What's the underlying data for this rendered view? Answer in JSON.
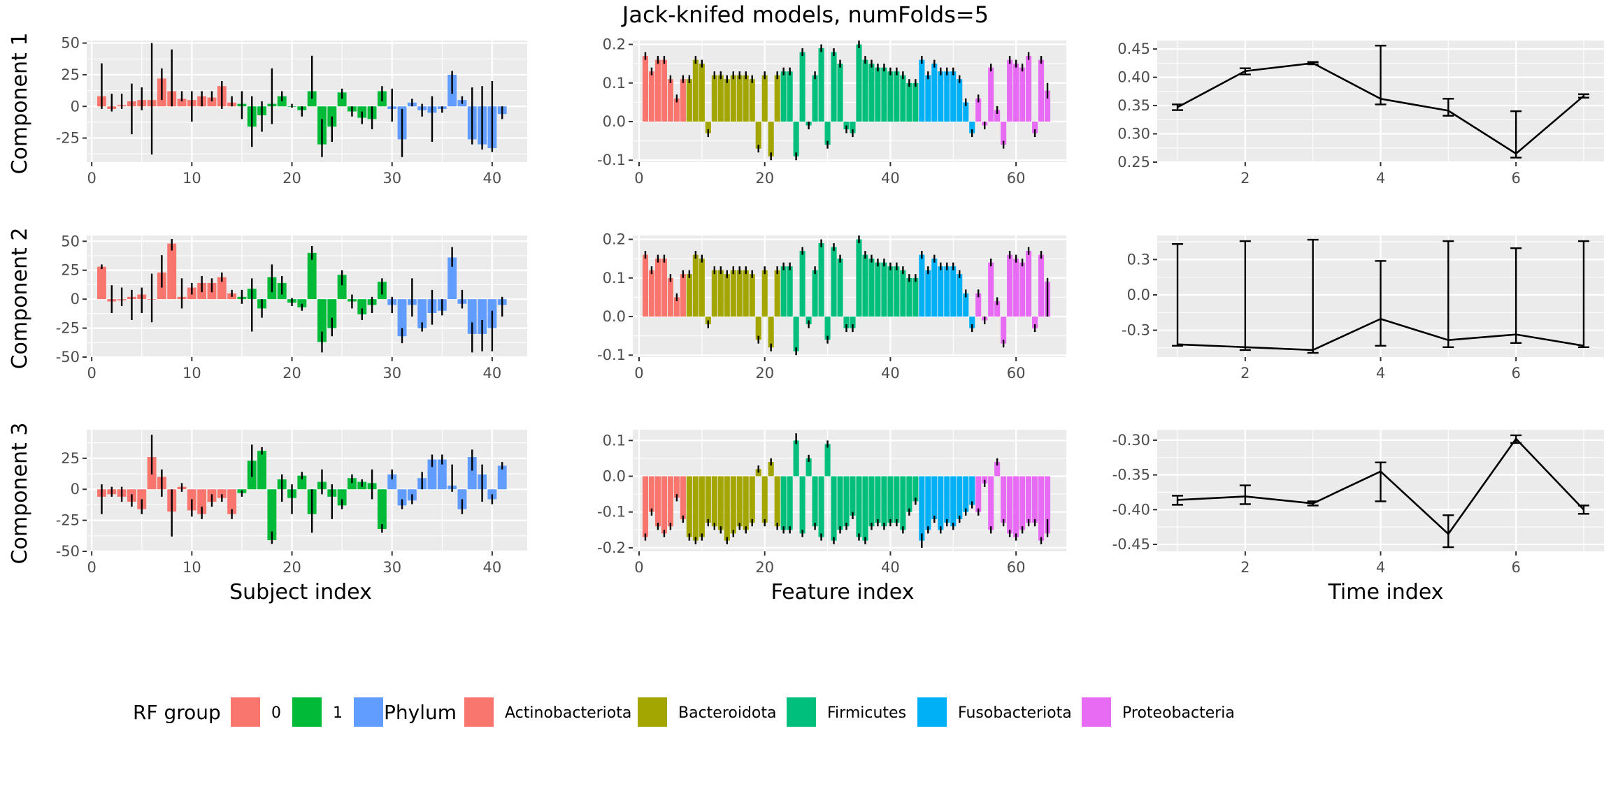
{
  "title": "Jack-knifed models, numFolds=5",
  "row_labels": [
    "Component 1",
    "Component 2",
    "Component 3"
  ],
  "x_labels": [
    "Subject index",
    "Feature index",
    "Time index"
  ],
  "colors": {
    "group_0": "#F8766D",
    "group_1": "#00BA38",
    "group_2": "#619CFF",
    "Actinobacteriota": "#F8766D",
    "Bacteroidota": "#A3A500",
    "Firmicutes": "#00BF7D",
    "Fusobacteriota": "#00B0F6",
    "Proteobacteria": "#E76BF3",
    "panel_bg": "#EBEBEB",
    "grid": "#FFFFFF"
  },
  "legend": {
    "rf_title": "RF group",
    "rf_labels": [
      "0",
      "1",
      ""
    ],
    "phylum_title": "Phylum",
    "phylum_labels": [
      "Actinobacteriota",
      "Bacteroidota",
      "Firmicutes",
      "Fusobacteriota",
      "Proteobacteria"
    ]
  },
  "chart_data": [
    {
      "id": "subject_c1",
      "type": "bar",
      "xlim": [
        -0.5,
        43.5
      ],
      "ylim": [
        -44,
        52
      ],
      "xticks": [
        0,
        10,
        20,
        30,
        40
      ],
      "yticks": [
        -25,
        0,
        25,
        50
      ],
      "group_sizes": [
        14,
        15,
        12
      ],
      "group_keys": [
        "group_0",
        "group_1",
        "group_2"
      ],
      "values": [
        8,
        -2,
        1,
        4,
        5,
        5,
        22,
        12,
        6,
        5,
        8,
        7,
        16,
        3,
        2,
        -16,
        -7,
        2,
        8,
        0,
        -3,
        12,
        -30,
        -16,
        11,
        -4,
        -9,
        -10,
        12,
        -2,
        -26,
        3,
        -3,
        -5,
        -2,
        25,
        5,
        -26,
        -30,
        -33,
        -6
      ],
      "lows": [
        -2,
        -4,
        -2,
        -22,
        -3,
        -38,
        5,
        0,
        4,
        -12,
        0,
        4,
        -2,
        0,
        -10,
        -32,
        -20,
        -14,
        4,
        -1,
        -8,
        6,
        -40,
        -28,
        6,
        -8,
        -14,
        -18,
        4,
        -12,
        -40,
        0,
        -8,
        -28,
        -5,
        10,
        2,
        -30,
        -34,
        -36,
        -10
      ],
      "highs": [
        34,
        10,
        10,
        18,
        15,
        50,
        30,
        45,
        12,
        12,
        12,
        12,
        20,
        8,
        12,
        8,
        4,
        30,
        12,
        2,
        0,
        40,
        -10,
        -8,
        14,
        0,
        -4,
        0,
        16,
        14,
        -2,
        6,
        2,
        8,
        0,
        28,
        8,
        15,
        16,
        20,
        0
      ]
    },
    {
      "id": "feature_c1",
      "type": "bar",
      "xlim": [
        -1,
        68
      ],
      "ylim": [
        -0.105,
        0.21
      ],
      "xticks": [
        0,
        20,
        40,
        60
      ],
      "yticks": [
        -0.1,
        0.0,
        0.1,
        0.2
      ],
      "group_sizes": [
        7,
        15,
        22,
        9,
        12
      ],
      "group_keys": [
        "Actinobacteriota",
        "Bacteroidota",
        "Firmicutes",
        "Fusobacteriota",
        "Proteobacteria"
      ],
      "values": [
        0.17,
        0.13,
        0.16,
        0.16,
        0.11,
        0.06,
        0.11,
        0.11,
        0.16,
        0.15,
        -0.03,
        0.12,
        0.12,
        0.11,
        0.12,
        0.12,
        0.12,
        0.11,
        -0.07,
        0.12,
        -0.09,
        0.12,
        0.13,
        0.13,
        -0.09,
        0.18,
        -0.01,
        0.12,
        0.19,
        -0.06,
        0.18,
        0.15,
        -0.02,
        -0.03,
        0.2,
        0.16,
        0.15,
        0.14,
        0.14,
        0.13,
        0.13,
        0.12,
        0.1,
        0.1,
        0.16,
        0.12,
        0.15,
        0.13,
        0.13,
        0.13,
        0.11,
        0.05,
        -0.03,
        0.06,
        -0.01,
        0.14,
        0.03,
        -0.06,
        0.16,
        0.15,
        0.14,
        0.17,
        -0.03,
        0.16,
        0.08
      ],
      "lows": [
        0.16,
        0.12,
        0.15,
        0.15,
        0.1,
        0.05,
        0.1,
        0.1,
        0.15,
        0.14,
        -0.04,
        0.11,
        0.11,
        0.1,
        0.11,
        0.11,
        0.11,
        0.1,
        -0.08,
        0.11,
        -0.1,
        0.11,
        0.12,
        0.12,
        -0.1,
        0.17,
        -0.02,
        0.11,
        0.18,
        -0.07,
        0.17,
        0.14,
        -0.03,
        -0.04,
        0.19,
        0.15,
        0.14,
        0.13,
        0.13,
        0.12,
        0.12,
        0.11,
        0.09,
        0.09,
        0.15,
        0.11,
        0.14,
        0.12,
        0.12,
        0.12,
        0.1,
        0.04,
        -0.04,
        0.05,
        -0.02,
        0.13,
        0.02,
        -0.07,
        0.15,
        0.14,
        0.13,
        0.16,
        -0.04,
        0.15,
        0.06
      ],
      "highs": [
        0.18,
        0.14,
        0.17,
        0.17,
        0.12,
        0.07,
        0.12,
        0.12,
        0.17,
        0.16,
        -0.02,
        0.13,
        0.13,
        0.12,
        0.13,
        0.13,
        0.13,
        0.12,
        -0.06,
        0.13,
        -0.08,
        0.13,
        0.14,
        0.14,
        -0.08,
        0.19,
        0.0,
        0.13,
        0.2,
        -0.05,
        0.19,
        0.16,
        -0.01,
        -0.02,
        0.21,
        0.17,
        0.16,
        0.15,
        0.15,
        0.14,
        0.14,
        0.13,
        0.11,
        0.11,
        0.17,
        0.13,
        0.16,
        0.14,
        0.14,
        0.14,
        0.12,
        0.06,
        -0.02,
        0.07,
        0.0,
        0.15,
        0.04,
        -0.05,
        0.17,
        0.16,
        0.15,
        0.18,
        -0.02,
        0.17,
        0.1
      ]
    },
    {
      "id": "time_c1",
      "type": "line",
      "xlim": [
        0.7,
        7.3
      ],
      "ylim": [
        0.25,
        0.465
      ],
      "xticks": [
        2,
        4,
        6
      ],
      "yticks": [
        0.25,
        0.3,
        0.35,
        0.4,
        0.45
      ],
      "x": [
        1,
        2,
        3,
        4,
        5,
        6,
        7
      ],
      "values": [
        0.347,
        0.411,
        0.425,
        0.362,
        0.341,
        0.265,
        0.367
      ],
      "lows": [
        0.342,
        0.405,
        0.423,
        0.352,
        0.332,
        0.258,
        0.364
      ],
      "highs": [
        0.352,
        0.416,
        0.427,
        0.456,
        0.362,
        0.34,
        0.37
      ]
    },
    {
      "id": "subject_c2",
      "type": "bar",
      "xlim": [
        -0.5,
        43.5
      ],
      "ylim": [
        -50,
        55
      ],
      "xticks": [
        0,
        10,
        20,
        30,
        40
      ],
      "yticks": [
        -50,
        -25,
        0,
        25,
        50
      ],
      "group_sizes": [
        14,
        15,
        12
      ],
      "group_keys": [
        "group_0",
        "group_1",
        "group_2"
      ],
      "values": [
        28,
        -2,
        -1,
        2,
        4,
        0,
        23,
        48,
        2,
        10,
        14,
        14,
        19,
        5,
        2,
        9,
        -8,
        19,
        14,
        -3,
        -7,
        40,
        -37,
        -25,
        21,
        -2,
        -13,
        -5,
        15,
        -5,
        -32,
        -5,
        -25,
        -12,
        -10,
        36,
        -4,
        -30,
        -30,
        -25,
        -5
      ],
      "lows": [
        26,
        -12,
        -6,
        -18,
        -12,
        -20,
        10,
        42,
        -8,
        4,
        6,
        6,
        15,
        2,
        -4,
        -28,
        -16,
        6,
        4,
        -6,
        -10,
        34,
        -46,
        -32,
        12,
        -8,
        -18,
        -12,
        4,
        -12,
        -38,
        -15,
        -28,
        -22,
        -14,
        28,
        -8,
        -46,
        -45,
        -45,
        -15
      ],
      "highs": [
        30,
        12,
        10,
        8,
        10,
        22,
        38,
        52,
        18,
        14,
        20,
        18,
        23,
        8,
        8,
        18,
        0,
        30,
        20,
        1,
        -4,
        46,
        -28,
        -16,
        25,
        4,
        -8,
        2,
        18,
        2,
        -25,
        18,
        -20,
        8,
        0,
        45,
        8,
        -20,
        -18,
        -10,
        2
      ]
    },
    {
      "id": "feature_c2",
      "type": "bar",
      "xlim": [
        -1,
        68
      ],
      "ylim": [
        -0.105,
        0.21
      ],
      "xticks": [
        0,
        20,
        40,
        60
      ],
      "yticks": [
        -0.1,
        0.0,
        0.1,
        0.2
      ],
      "group_sizes": [
        7,
        15,
        22,
        9,
        12
      ],
      "group_keys": [
        "Actinobacteriota",
        "Bacteroidota",
        "Firmicutes",
        "Fusobacteriota",
        "Proteobacteria"
      ],
      "values": [
        0.16,
        0.12,
        0.15,
        0.15,
        0.1,
        0.05,
        0.11,
        0.11,
        0.16,
        0.15,
        -0.02,
        0.12,
        0.12,
        0.11,
        0.12,
        0.12,
        0.12,
        0.11,
        -0.06,
        0.12,
        -0.08,
        0.12,
        0.13,
        0.13,
        -0.09,
        0.17,
        -0.02,
        0.12,
        0.19,
        -0.06,
        0.18,
        0.15,
        -0.03,
        -0.03,
        0.2,
        0.16,
        0.15,
        0.14,
        0.14,
        0.13,
        0.13,
        0.12,
        0.1,
        0.1,
        0.16,
        0.12,
        0.15,
        0.13,
        0.13,
        0.13,
        0.11,
        0.06,
        -0.03,
        0.06,
        -0.01,
        0.14,
        0.04,
        -0.07,
        0.16,
        0.15,
        0.14,
        0.17,
        -0.03,
        0.16,
        0.09
      ],
      "lows": [
        0.15,
        0.11,
        0.14,
        0.14,
        0.09,
        0.04,
        0.1,
        0.1,
        0.15,
        0.14,
        -0.03,
        0.11,
        0.11,
        0.1,
        0.11,
        0.11,
        0.11,
        0.1,
        -0.07,
        0.11,
        -0.09,
        0.11,
        0.12,
        0.12,
        -0.1,
        0.16,
        -0.03,
        0.11,
        0.18,
        -0.07,
        0.17,
        0.14,
        -0.04,
        -0.04,
        0.19,
        0.15,
        0.14,
        0.13,
        0.13,
        0.12,
        0.12,
        0.11,
        0.09,
        0.09,
        0.15,
        0.11,
        0.14,
        0.12,
        0.12,
        0.12,
        0.1,
        0.05,
        -0.04,
        0.05,
        -0.02,
        0.13,
        0.03,
        -0.08,
        0.15,
        0.14,
        0.13,
        0.16,
        -0.04,
        0.15,
        0.0
      ],
      "highs": [
        0.17,
        0.13,
        0.16,
        0.16,
        0.11,
        0.06,
        0.12,
        0.12,
        0.17,
        0.16,
        -0.01,
        0.13,
        0.13,
        0.12,
        0.13,
        0.13,
        0.13,
        0.12,
        -0.05,
        0.13,
        -0.07,
        0.13,
        0.14,
        0.14,
        -0.08,
        0.18,
        -0.01,
        0.13,
        0.2,
        -0.05,
        0.19,
        0.16,
        -0.02,
        -0.02,
        0.21,
        0.17,
        0.16,
        0.15,
        0.15,
        0.14,
        0.14,
        0.13,
        0.11,
        0.11,
        0.17,
        0.13,
        0.16,
        0.14,
        0.14,
        0.14,
        0.12,
        0.07,
        -0.02,
        0.07,
        0.0,
        0.15,
        0.05,
        -0.06,
        0.17,
        0.16,
        0.15,
        0.18,
        -0.02,
        0.17,
        0.1
      ]
    },
    {
      "id": "time_c2",
      "type": "line",
      "xlim": [
        0.7,
        7.3
      ],
      "ylim": [
        -0.44,
        0.42
      ],
      "xticks": [
        2,
        4,
        6
      ],
      "yticks": [
        -0.25,
        0.0,
        0.25
      ],
      "x": [
        1,
        2,
        3,
        4,
        5,
        6,
        7
      ],
      "values": [
        -0.35,
        -0.37,
        -0.39,
        -0.17,
        -0.32,
        -0.28,
        -0.36
      ],
      "lows": [
        -0.36,
        -0.39,
        -0.41,
        -0.36,
        -0.37,
        -0.34,
        -0.37
      ],
      "highs": [
        0.36,
        0.38,
        0.39,
        0.24,
        0.38,
        0.33,
        0.38
      ]
    },
    {
      "id": "subject_c3",
      "type": "bar",
      "xlim": [
        -0.5,
        43.5
      ],
      "ylim": [
        -50,
        48
      ],
      "xticks": [
        0,
        10,
        20,
        30,
        40
      ],
      "yticks": [
        -50,
        -25,
        0,
        25
      ],
      "group_sizes": [
        14,
        15,
        12
      ],
      "group_keys": [
        "group_0",
        "group_1",
        "group_2"
      ],
      "values": [
        -6,
        -4,
        -6,
        -10,
        -16,
        26,
        10,
        -18,
        2,
        -17,
        -20,
        -10,
        -7,
        -20,
        -3,
        23,
        31,
        -41,
        8,
        -7,
        11,
        -20,
        6,
        -6,
        -13,
        9,
        6,
        5,
        -32,
        12,
        -13,
        -9,
        9,
        24,
        24,
        3,
        -16,
        26,
        12,
        -8,
        19
      ],
      "lows": [
        -20,
        -6,
        -10,
        -14,
        -20,
        12,
        -6,
        -38,
        -2,
        -22,
        -24,
        -14,
        -10,
        -24,
        -6,
        10,
        28,
        -44,
        -10,
        -20,
        8,
        -35,
        -4,
        -24,
        -16,
        5,
        2,
        -8,
        -35,
        8,
        -16,
        -12,
        0,
        18,
        20,
        -2,
        -20,
        15,
        -10,
        -12,
        16
      ],
      "highs": [
        4,
        2,
        2,
        -4,
        -8,
        44,
        16,
        0,
        5,
        -8,
        -14,
        -4,
        -4,
        -16,
        -1,
        36,
        34,
        -34,
        12,
        4,
        14,
        0,
        16,
        4,
        -8,
        12,
        8,
        16,
        -28,
        16,
        -8,
        -4,
        14,
        28,
        28,
        20,
        -8,
        32,
        20,
        -4,
        22
      ]
    },
    {
      "id": "feature_c3",
      "type": "bar",
      "xlim": [
        -1,
        68
      ],
      "ylim": [
        -0.21,
        0.13
      ],
      "xticks": [
        0,
        20,
        40,
        60
      ],
      "yticks": [
        -0.2,
        -0.1,
        0.0,
        0.1
      ],
      "group_sizes": [
        7,
        15,
        22,
        9,
        12
      ],
      "group_keys": [
        "Actinobacteriota",
        "Bacteroidota",
        "Firmicutes",
        "Fusobacteriota",
        "Proteobacteria"
      ],
      "values": [
        -0.17,
        -0.1,
        -0.14,
        -0.16,
        -0.14,
        -0.06,
        -0.12,
        -0.17,
        -0.18,
        -0.17,
        -0.13,
        -0.14,
        -0.15,
        -0.18,
        -0.16,
        -0.14,
        -0.15,
        -0.13,
        0.02,
        -0.13,
        0.04,
        -0.14,
        -0.15,
        -0.15,
        0.1,
        -0.16,
        0.05,
        -0.14,
        -0.17,
        0.09,
        -0.18,
        -0.15,
        -0.14,
        -0.11,
        -0.17,
        -0.18,
        -0.14,
        -0.13,
        -0.14,
        -0.13,
        -0.13,
        -0.15,
        -0.1,
        -0.07,
        -0.18,
        -0.15,
        -0.12,
        -0.15,
        -0.13,
        -0.14,
        -0.12,
        -0.1,
        -0.08,
        -0.1,
        -0.02,
        -0.15,
        0.04,
        -0.13,
        -0.16,
        -0.17,
        -0.15,
        -0.13,
        -0.13,
        -0.18,
        -0.16
      ],
      "lows": [
        -0.18,
        -0.11,
        -0.15,
        -0.17,
        -0.15,
        -0.07,
        -0.13,
        -0.18,
        -0.19,
        -0.18,
        -0.14,
        -0.15,
        -0.16,
        -0.19,
        -0.17,
        -0.15,
        -0.16,
        -0.14,
        0.01,
        -0.14,
        0.03,
        -0.15,
        -0.16,
        -0.16,
        0.09,
        -0.17,
        0.04,
        -0.15,
        -0.18,
        0.08,
        -0.19,
        -0.16,
        -0.15,
        -0.12,
        -0.18,
        -0.19,
        -0.15,
        -0.14,
        -0.15,
        -0.14,
        -0.14,
        -0.16,
        -0.11,
        -0.08,
        -0.2,
        -0.16,
        -0.13,
        -0.16,
        -0.14,
        -0.15,
        -0.13,
        -0.11,
        -0.09,
        -0.11,
        -0.03,
        -0.16,
        0.03,
        -0.14,
        -0.17,
        -0.18,
        -0.16,
        -0.14,
        -0.14,
        -0.19,
        -0.17
      ],
      "highs": [
        -0.16,
        -0.09,
        -0.13,
        -0.15,
        -0.13,
        -0.05,
        -0.11,
        -0.16,
        -0.17,
        -0.16,
        -0.12,
        -0.13,
        -0.14,
        -0.17,
        -0.15,
        -0.13,
        -0.14,
        -0.12,
        0.03,
        -0.12,
        0.05,
        -0.13,
        -0.14,
        -0.14,
        0.12,
        -0.15,
        0.06,
        -0.13,
        -0.16,
        0.1,
        -0.17,
        -0.14,
        -0.13,
        -0.1,
        -0.16,
        -0.17,
        -0.13,
        -0.12,
        -0.13,
        -0.12,
        -0.12,
        -0.14,
        -0.09,
        -0.06,
        -0.16,
        -0.14,
        -0.11,
        -0.14,
        -0.12,
        -0.13,
        -0.11,
        -0.09,
        -0.07,
        -0.09,
        -0.01,
        -0.14,
        0.05,
        -0.12,
        -0.15,
        -0.16,
        -0.14,
        -0.12,
        -0.12,
        -0.17,
        -0.12
      ]
    },
    {
      "id": "time_c3",
      "type": "line",
      "xlim": [
        0.7,
        7.3
      ],
      "ylim": [
        -0.46,
        -0.285
      ],
      "xticks": [
        2,
        4,
        6
      ],
      "yticks": [
        -0.45,
        -0.4,
        -0.35,
        -0.3
      ],
      "x": [
        1,
        2,
        3,
        4,
        5,
        6,
        7
      ],
      "values": [
        -0.386,
        -0.381,
        -0.391,
        -0.345,
        -0.435,
        -0.298,
        -0.4
      ],
      "lows": [
        -0.393,
        -0.392,
        -0.394,
        -0.388,
        -0.454,
        -0.304,
        -0.406
      ],
      "highs": [
        -0.38,
        -0.365,
        -0.388,
        -0.332,
        -0.408,
        -0.293,
        -0.394
      ]
    }
  ]
}
